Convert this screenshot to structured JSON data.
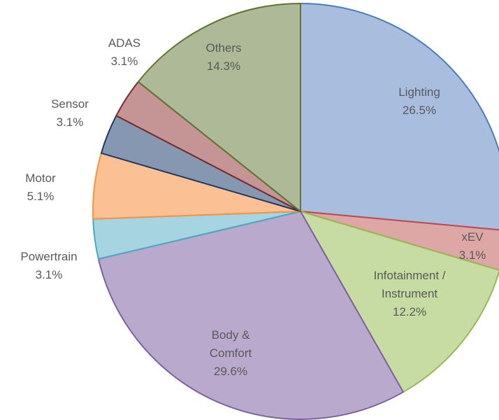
{
  "chart_data": {
    "type": "pie",
    "categories": [
      "Lighting",
      "xEV",
      "Infotainment / Instrument",
      "Body & Comfort",
      "Powertrain",
      "Motor",
      "Sensor",
      "ADAS",
      "Others"
    ],
    "values": [
      26.5,
      3.1,
      12.2,
      29.6,
      3.1,
      5.1,
      3.1,
      3.1,
      14.3
    ],
    "value_labels": [
      "26.5%",
      "3.1%",
      "12.2%",
      "29.6%",
      "3.1%",
      "5.1%",
      "3.1%",
      "3.1%",
      "14.3%"
    ],
    "colors": [
      "#a9bedf",
      "#dda7a6",
      "#c7dca2",
      "#b9aacd",
      "#a6d4e1",
      "#fbc093",
      "#8698b1",
      "#c59495",
      "#aeb997"
    ],
    "edge_colors": [
      "#4a7ebb",
      "#be4b48",
      "#98b954",
      "#7d60a0",
      "#46aac5",
      "#f69240",
      "#1f3a60",
      "#772c2a",
      "#5f7530"
    ]
  }
}
